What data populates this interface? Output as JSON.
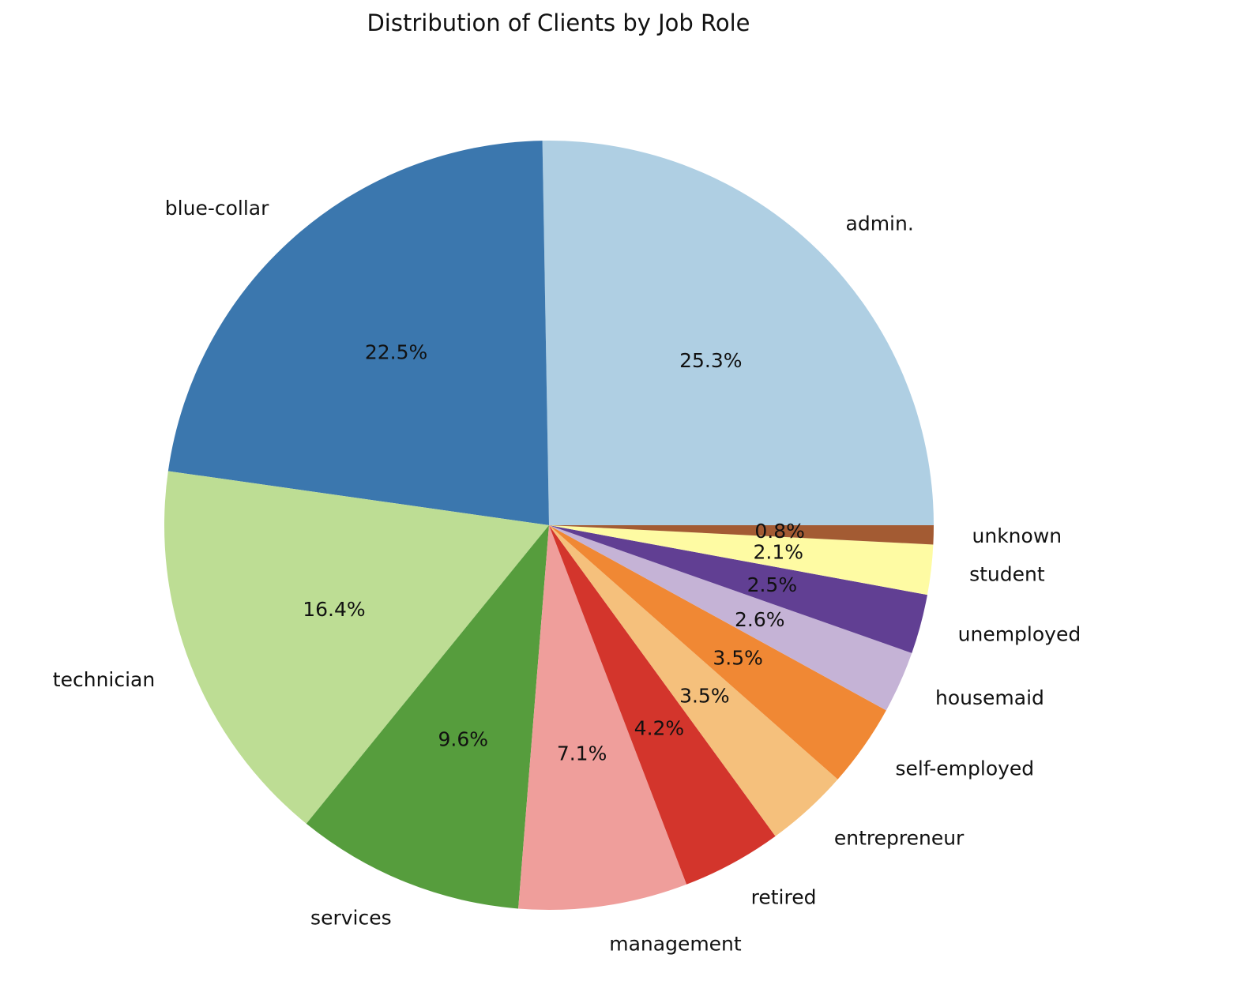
{
  "chart_data": {
    "type": "pie",
    "title": "Distribution of Clients by Job Role",
    "slices": [
      {
        "label": "admin.",
        "value": 25.3,
        "display": "25.3%",
        "color": "#afcfe3"
      },
      {
        "label": "blue-collar",
        "value": 22.5,
        "display": "22.5%",
        "color": "#3b77ae"
      },
      {
        "label": "technician",
        "value": 16.4,
        "display": "16.4%",
        "color": "#bddd94"
      },
      {
        "label": "services",
        "value": 9.6,
        "display": "9.6%",
        "color": "#569d3d"
      },
      {
        "label": "management",
        "value": 7.1,
        "display": "7.1%",
        "color": "#ef9e9b"
      },
      {
        "label": "retired",
        "value": 4.2,
        "display": "4.2%",
        "color": "#d3352c"
      },
      {
        "label": "entrepreneur",
        "value": 3.5,
        "display": "3.5%",
        "color": "#f5c07c"
      },
      {
        "label": "self-employed",
        "value": 3.5,
        "display": "3.5%",
        "color": "#f08834"
      },
      {
        "label": "housemaid",
        "value": 2.6,
        "display": "2.6%",
        "color": "#c5b3d6"
      },
      {
        "label": "unemployed",
        "value": 2.5,
        "display": "2.5%",
        "color": "#613f93"
      },
      {
        "label": "student",
        "value": 2.1,
        "display": "2.1%",
        "color": "#fefba3"
      },
      {
        "label": "unknown",
        "value": 0.8,
        "display": "0.8%",
        "color": "#a35b33"
      }
    ],
    "start_angle_deg": 0,
    "direction": "counterclockwise"
  }
}
